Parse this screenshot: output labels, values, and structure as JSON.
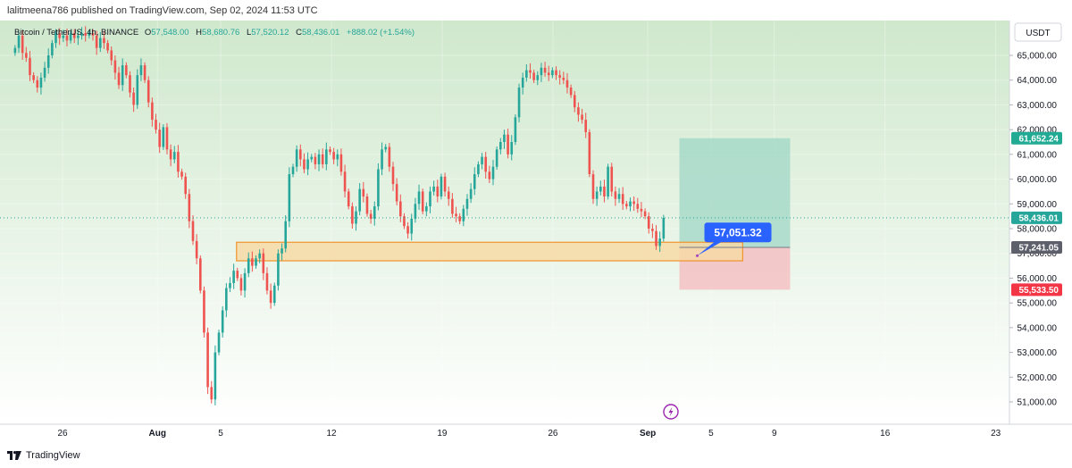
{
  "header": {
    "publisher_line": "lalitmeena786 published on TradingView.com, Sep 02, 2024 11:53 UTC"
  },
  "legend": {
    "symbol": "Bitcoin / TetherUS, 4h, BINANCE",
    "o_label": "O",
    "o_value": "57,548.00",
    "h_label": "H",
    "h_value": "58,680.76",
    "l_label": "L",
    "l_value": "57,520.12",
    "c_label": "C",
    "c_value": "58,436.01",
    "change": "+888.02 (+1.54%)"
  },
  "currency_button": "USDT",
  "footer": {
    "brand": "TradingView"
  },
  "markers": {
    "event_icon": "lightning-icon"
  },
  "colors": {
    "up": "#26a69a",
    "down": "#ef5350",
    "bg_top": "#cfe8cc",
    "bg_bottom": "#ffffff",
    "zone_fill": "#f7d9a6",
    "zone_stroke": "#f0932b",
    "target_fill": "#a7d9c9",
    "stop_fill": "#f3c4c4",
    "callout": "#2962ff"
  },
  "chart_data": {
    "type": "candlestick",
    "symbol": "BTCUSDT",
    "interval": "4h",
    "ylim": [
      50400,
      65900
    ],
    "y_ticks": [
      {
        "v": 51000,
        "label": "51,000.00"
      },
      {
        "v": 52000,
        "label": "52,000.00"
      },
      {
        "v": 53000,
        "label": "53,000.00"
      },
      {
        "v": 54000,
        "label": "54,000.00"
      },
      {
        "v": 55000,
        "label": "55,000.00"
      },
      {
        "v": 56000,
        "label": "56,000.00"
      },
      {
        "v": 57000,
        "label": "57,000.00"
      },
      {
        "v": 58000,
        "label": "58,000.00"
      },
      {
        "v": 59000,
        "label": "59,000.00"
      },
      {
        "v": 60000,
        "label": "60,000.00"
      },
      {
        "v": 61000,
        "label": "61,000.00"
      },
      {
        "v": 62000,
        "label": "62,000.00"
      },
      {
        "v": 63000,
        "label": "63,000.00"
      },
      {
        "v": 64000,
        "label": "64,000.00"
      },
      {
        "v": 65000,
        "label": "65,000.00"
      }
    ],
    "x_ticks": [
      {
        "date": "2024-07-26",
        "label": "26"
      },
      {
        "date": "2024-08-01",
        "label": "Aug"
      },
      {
        "date": "2024-08-05",
        "label": "5"
      },
      {
        "date": "2024-08-12",
        "label": "12"
      },
      {
        "date": "2024-08-19",
        "label": "19"
      },
      {
        "date": "2024-08-26",
        "label": "26"
      },
      {
        "date": "2024-09-01",
        "label": "Sep"
      },
      {
        "date": "2024-09-05",
        "label": "5"
      },
      {
        "date": "2024-09-09",
        "label": "9"
      },
      {
        "date": "2024-09-16",
        "label": "16"
      },
      {
        "date": "2024-09-23",
        "label": "23"
      }
    ],
    "close_series": [
      [
        "2024-07-23",
        65300
      ],
      [
        "2024-07-24",
        65800
      ],
      [
        "2024-07-24",
        65100
      ],
      [
        "2024-07-24",
        64900
      ],
      [
        "2024-07-25",
        64200
      ],
      [
        "2024-07-25",
        64000
      ],
      [
        "2024-07-25",
        63700
      ],
      [
        "2024-07-25",
        64100
      ],
      [
        "2024-07-26",
        64500
      ],
      [
        "2024-07-26",
        65000
      ],
      [
        "2024-07-26",
        65500
      ],
      [
        "2024-07-27",
        65900
      ],
      [
        "2024-07-27",
        65700
      ],
      [
        "2024-07-27",
        65800
      ],
      [
        "2024-07-27",
        65600
      ],
      [
        "2024-07-28",
        65900
      ],
      [
        "2024-07-28",
        65700
      ],
      [
        "2024-07-28",
        65800
      ],
      [
        "2024-07-28",
        65900
      ],
      [
        "2024-07-29",
        65800
      ],
      [
        "2024-07-29",
        65900
      ],
      [
        "2024-07-29",
        65800
      ],
      [
        "2024-07-30",
        65300
      ],
      [
        "2024-07-30",
        65700
      ],
      [
        "2024-07-30",
        65500
      ],
      [
        "2024-07-30",
        65200
      ],
      [
        "2024-07-30",
        64800
      ],
      [
        "2024-07-31",
        64300
      ],
      [
        "2024-07-31",
        63800
      ],
      [
        "2024-07-31",
        64600
      ],
      [
        "2024-07-31",
        64200
      ],
      [
        "2024-07-31",
        63500
      ],
      [
        "2024-08-01",
        63000
      ],
      [
        "2024-08-01",
        64200
      ],
      [
        "2024-08-01",
        64600
      ],
      [
        "2024-08-01",
        64000
      ],
      [
        "2024-08-02",
        63100
      ],
      [
        "2024-08-02",
        62400
      ],
      [
        "2024-08-02",
        62000
      ],
      [
        "2024-08-02",
        61300
      ],
      [
        "2024-08-03",
        62100
      ],
      [
        "2024-08-03",
        61200
      ],
      [
        "2024-08-03",
        60800
      ],
      [
        "2024-08-03",
        61100
      ],
      [
        "2024-08-03",
        60300
      ],
      [
        "2024-08-04",
        60100
      ],
      [
        "2024-08-04",
        59400
      ],
      [
        "2024-08-04",
        58300
      ],
      [
        "2024-08-04",
        57500
      ],
      [
        "2024-08-04",
        56800
      ],
      [
        "2024-08-05",
        55500
      ],
      [
        "2024-08-05",
        53800
      ],
      [
        "2024-08-05",
        51600
      ],
      [
        "2024-08-05",
        51100
      ],
      [
        "2024-08-05",
        53000
      ],
      [
        "2024-08-05",
        53800
      ],
      [
        "2024-08-06",
        54700
      ],
      [
        "2024-08-06",
        55600
      ],
      [
        "2024-08-06",
        55800
      ],
      [
        "2024-08-06",
        56300
      ],
      [
        "2024-08-06",
        56000
      ],
      [
        "2024-08-06",
        55500
      ],
      [
        "2024-08-07",
        56200
      ],
      [
        "2024-08-07",
        56800
      ],
      [
        "2024-08-07",
        56500
      ],
      [
        "2024-08-07",
        56800
      ],
      [
        "2024-08-07",
        57000
      ],
      [
        "2024-08-07",
        56200
      ],
      [
        "2024-08-08",
        55500
      ],
      [
        "2024-08-08",
        55000
      ],
      [
        "2024-08-08",
        55700
      ],
      [
        "2024-08-08",
        57000
      ],
      [
        "2024-08-08",
        57200
      ],
      [
        "2024-08-08",
        58300
      ],
      [
        "2024-08-09",
        60200
      ],
      [
        "2024-08-09",
        60500
      ],
      [
        "2024-08-09",
        61200
      ],
      [
        "2024-08-09",
        60800
      ],
      [
        "2024-08-10",
        60400
      ],
      [
        "2024-08-10",
        60800
      ],
      [
        "2024-08-10",
        60900
      ],
      [
        "2024-08-10",
        60600
      ],
      [
        "2024-08-11",
        61000
      ],
      [
        "2024-08-11",
        60600
      ],
      [
        "2024-08-11",
        61200
      ],
      [
        "2024-08-11",
        61100
      ],
      [
        "2024-08-11",
        60800
      ],
      [
        "2024-08-12",
        61000
      ],
      [
        "2024-08-12",
        60300
      ],
      [
        "2024-08-12",
        59500
      ],
      [
        "2024-08-12",
        58900
      ],
      [
        "2024-08-13",
        58200
      ],
      [
        "2024-08-13",
        58700
      ],
      [
        "2024-08-13",
        59600
      ],
      [
        "2024-08-13",
        59300
      ],
      [
        "2024-08-13",
        58600
      ],
      [
        "2024-08-14",
        58400
      ],
      [
        "2024-08-14",
        58900
      ],
      [
        "2024-08-14",
        60400
      ],
      [
        "2024-08-14",
        61200
      ],
      [
        "2024-08-15",
        61300
      ],
      [
        "2024-08-15",
        60500
      ],
      [
        "2024-08-15",
        59800
      ],
      [
        "2024-08-15",
        59100
      ],
      [
        "2024-08-16",
        58500
      ],
      [
        "2024-08-16",
        58100
      ],
      [
        "2024-08-16",
        57800
      ],
      [
        "2024-08-16",
        58400
      ],
      [
        "2024-08-17",
        59000
      ],
      [
        "2024-08-17",
        59500
      ],
      [
        "2024-08-17",
        58700
      ],
      [
        "2024-08-17",
        58900
      ],
      [
        "2024-08-18",
        59500
      ],
      [
        "2024-08-18",
        59700
      ],
      [
        "2024-08-18",
        59300
      ],
      [
        "2024-08-18",
        60100
      ],
      [
        "2024-08-19",
        59500
      ],
      [
        "2024-08-19",
        59200
      ],
      [
        "2024-08-19",
        58600
      ],
      [
        "2024-08-19",
        58500
      ],
      [
        "2024-08-20",
        58300
      ],
      [
        "2024-08-20",
        58800
      ],
      [
        "2024-08-20",
        59200
      ],
      [
        "2024-08-20",
        59600
      ],
      [
        "2024-08-21",
        60200
      ],
      [
        "2024-08-21",
        60600
      ],
      [
        "2024-08-21",
        60900
      ],
      [
        "2024-08-21",
        60300
      ],
      [
        "2024-08-22",
        60000
      ],
      [
        "2024-08-22",
        60500
      ],
      [
        "2024-08-22",
        61200
      ],
      [
        "2024-08-22",
        61500
      ],
      [
        "2024-08-22",
        61800
      ],
      [
        "2024-08-23",
        61000
      ],
      [
        "2024-08-23",
        61500
      ],
      [
        "2024-08-23",
        62500
      ],
      [
        "2024-08-23",
        63700
      ],
      [
        "2024-08-24",
        64100
      ],
      [
        "2024-08-24",
        64400
      ],
      [
        "2024-08-24",
        64300
      ],
      [
        "2024-08-24",
        64000
      ],
      [
        "2024-08-25",
        64200
      ],
      [
        "2024-08-25",
        64500
      ],
      [
        "2024-08-25",
        64300
      ],
      [
        "2024-08-25",
        64200
      ],
      [
        "2024-08-26",
        64400
      ],
      [
        "2024-08-26",
        64200
      ],
      [
        "2024-08-26",
        64100
      ],
      [
        "2024-08-26",
        64000
      ],
      [
        "2024-08-26",
        63700
      ],
      [
        "2024-08-27",
        63400
      ],
      [
        "2024-08-27",
        62900
      ],
      [
        "2024-08-27",
        62600
      ],
      [
        "2024-08-27",
        62400
      ],
      [
        "2024-08-28",
        61900
      ],
      [
        "2024-08-28",
        60200
      ],
      [
        "2024-08-28",
        59200
      ],
      [
        "2024-08-28",
        59500
      ],
      [
        "2024-08-29",
        59700
      ],
      [
        "2024-08-29",
        59300
      ],
      [
        "2024-08-29",
        60500
      ],
      [
        "2024-08-29",
        59500
      ],
      [
        "2024-08-30",
        59200
      ],
      [
        "2024-08-30",
        59400
      ],
      [
        "2024-08-30",
        59000
      ],
      [
        "2024-08-30",
        58900
      ],
      [
        "2024-08-31",
        59100
      ],
      [
        "2024-08-31",
        59000
      ],
      [
        "2024-08-31",
        58800
      ],
      [
        "2024-08-31",
        58700
      ],
      [
        "2024-09-01",
        58500
      ],
      [
        "2024-09-01",
        58000
      ],
      [
        "2024-09-01",
        57900
      ],
      [
        "2024-09-01",
        57300
      ],
      [
        "2024-09-02",
        57600
      ],
      [
        "2024-09-02",
        58436
      ]
    ],
    "last_price": 58436.01,
    "last_price_label": "58,436.01",
    "level_labels": [
      {
        "v": 61652.24,
        "label": "61,652.24",
        "role": "target"
      },
      {
        "v": 57241.05,
        "label": "57,241.05",
        "role": "entry"
      },
      {
        "v": 55533.5,
        "label": "55,533.50",
        "role": "stop"
      }
    ],
    "callout": {
      "v": 57051.32,
      "label": "57,051.32"
    },
    "support_zone": {
      "from": 56700,
      "to": 57450,
      "start": "2024-08-06",
      "end": "2024-09-07"
    },
    "long_position": {
      "entry": 57241.05,
      "target": 61652.24,
      "stop": 55533.5,
      "start": "2024-09-03",
      "end": "2024-09-10"
    }
  }
}
